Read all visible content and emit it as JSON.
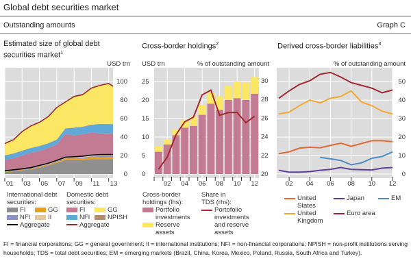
{
  "header": {
    "title": "Global debt securities market",
    "subtitle": "Outstanding amounts",
    "graph_label": "Graph C"
  },
  "colors": {
    "plot_bg": "#dcdcdc",
    "grid": "#ffffff",
    "intl_fi": "#8f8f8f",
    "intl_gg": "#e9a020",
    "intl_nfi": "#8a93c9",
    "intl_ii": "#e6c79a",
    "dom_fi": "#c27b93",
    "dom_gg": "#fbe763",
    "dom_nfi": "#5fa9d9",
    "dom_npish": "#b38b6d",
    "intl_agg": "#000000",
    "dom_agg": "#9b2a2e",
    "portfolio": "#c27b93",
    "reserve": "#fbe763",
    "share": "#a3282e",
    "us": "#e2692e",
    "japan": "#5e3f98",
    "em": "#4d8bc3",
    "uk": "#f2a833",
    "euro": "#a3282e"
  },
  "chart_data": [
    {
      "type": "area",
      "title": "Estimated size of global debt securities market",
      "title_footnote": "1",
      "ylabel": "USD trn",
      "ylim": [
        0,
        115
      ],
      "yticks": [
        0,
        20,
        40,
        60,
        80,
        100
      ],
      "xticks": [
        {
          "value": 2001,
          "label": "01"
        },
        {
          "value": 2003,
          "label": "03"
        },
        {
          "value": 2005,
          "label": "05"
        },
        {
          "value": 2007,
          "label": "07"
        },
        {
          "value": 2009,
          "label": "09"
        },
        {
          "value": 2011,
          "label": "11"
        },
        {
          "value": 2013,
          "label": "13"
        }
      ],
      "x": [
        2001,
        2002,
        2003,
        2004,
        2005,
        2006,
        2007,
        2008,
        2009,
        2010,
        2011,
        2012,
        2013,
        2013.5
      ],
      "stacked_series": [
        {
          "key": "intl_fi",
          "name": "FI",
          "group": "International debt securities",
          "values": [
            2,
            3,
            4,
            5,
            7,
            9,
            12,
            15,
            15,
            15,
            16,
            16,
            16,
            16
          ]
        },
        {
          "key": "intl_gg",
          "name": "GG",
          "group": "International debt securities",
          "values": [
            0.5,
            0.5,
            0.6,
            0.7,
            0.8,
            0.9,
            1,
            1.2,
            1.5,
            1.8,
            2,
            2.2,
            2.3,
            2.3
          ]
        },
        {
          "key": "intl_nfi",
          "name": "NFI",
          "group": "International debt securities",
          "values": [
            0.5,
            0.5,
            0.5,
            0.6,
            0.6,
            0.6,
            0.6,
            0.7,
            0.8,
            0.9,
            1,
            1.1,
            1.1,
            1.1
          ]
        },
        {
          "key": "intl_ii",
          "name": "II",
          "group": "International debt securities",
          "values": [
            0.5,
            0.5,
            0.5,
            0.6,
            0.9,
            1.1,
            1.1,
            1.3,
            1.4,
            1.6,
            1.5,
            1.7,
            1.7,
            1.6
          ]
        },
        {
          "key": "dom_fi",
          "name": "FI",
          "group": "Domestic debt securities",
          "values": [
            11.5,
            12.5,
            14.4,
            16,
            15.7,
            16.4,
            17.3,
            24.8,
            23.3,
            23.7,
            24.5,
            23,
            22.9,
            23
          ]
        },
        {
          "key": "dom_nfi",
          "name": "NFI",
          "group": "Domestic debt securities",
          "values": [
            5,
            5,
            5,
            5,
            5,
            5,
            5,
            6,
            8,
            8,
            8,
            10,
            10,
            10
          ]
        },
        {
          "key": "dom_npish",
          "name": "NPISH",
          "group": "Domestic debt securities",
          "values": [
            0.3,
            0.3,
            0.3,
            0.3,
            0.3,
            0.3,
            0.3,
            0.3,
            0.3,
            0.3,
            0.3,
            0.3,
            0.3,
            0.3
          ]
        },
        {
          "key": "dom_gg",
          "name": "GG",
          "group": "Domestic debt securities",
          "values": [
            12.7,
            14.7,
            20.7,
            23.7,
            25.7,
            28.7,
            34.7,
            28.7,
            33.7,
            34.7,
            39.7,
            41.7,
            43.7,
            40.7
          ]
        }
      ],
      "lines": [
        {
          "key": "intl_agg",
          "name": "Aggregate",
          "group": "International debt securities",
          "values": [
            3.5,
            4.5,
            5.6,
            6.9,
            9.3,
            11.6,
            14.7,
            18.2,
            18.7,
            19.3,
            20.5,
            21,
            21.1,
            21
          ]
        },
        {
          "key": "dom_agg",
          "name": "Aggregate",
          "group": "Domestic debt securities",
          "values": [
            33,
            37,
            46,
            52,
            56,
            62,
            72,
            78,
            84,
            86,
            93,
            96,
            98,
            95
          ]
        }
      ]
    },
    {
      "type": "bar",
      "title": "Cross-border holdings",
      "title_footnote": "2",
      "ylabel_left": "USD trn",
      "ylabel_right": "% of outstanding amount",
      "ylim_left": [
        0,
        28.7
      ],
      "ylim_right": [
        20,
        31.5
      ],
      "yticks_left": [
        0,
        5,
        10,
        15,
        20,
        25
      ],
      "yticks_right": [
        20,
        22,
        24,
        26,
        28,
        30
      ],
      "categories": [
        2001,
        2002,
        2003,
        2004,
        2005,
        2006,
        2007,
        2008,
        2009,
        2010,
        2011,
        2012
      ],
      "xticks": [
        {
          "value": 2002,
          "label": "02"
        },
        {
          "value": 2004,
          "label": "04"
        },
        {
          "value": 2006,
          "label": "06"
        },
        {
          "value": 2008,
          "label": "08"
        },
        {
          "value": 2010,
          "label": "10"
        },
        {
          "value": 2012,
          "label": "12"
        }
      ],
      "series": [
        {
          "key": "portfolio",
          "name": "Portfolio investments",
          "values": [
            6,
            8,
            10.5,
            12.5,
            13,
            16,
            19,
            17.3,
            20,
            20.5,
            20,
            21.7
          ]
        },
        {
          "key": "reserve",
          "name": "Reserve assets",
          "values": [
            1.5,
            1.3,
            1.5,
            2,
            2.5,
            2.7,
            3,
            3.7,
            3.8,
            4.5,
            4.7,
            4.5
          ]
        }
      ],
      "line": {
        "key": "share",
        "name": "Portofolio investments and reserve assets",
        "axis": "right",
        "values": [
          20.5,
          21.8,
          24.2,
          25.6,
          26.1,
          28.5,
          29,
          26.3,
          26.6,
          26.6,
          25.5,
          26.2
        ]
      }
    },
    {
      "type": "line",
      "title": "Derived cross-border liabilities",
      "title_footnote": "3",
      "ylabel": "% of outstanding amount",
      "ylim": [
        0,
        57.5
      ],
      "yticks": [
        0,
        10,
        20,
        30,
        40,
        50
      ],
      "xlim": [
        2001,
        2012.2
      ],
      "xticks": [
        {
          "value": 2002,
          "label": "02"
        },
        {
          "value": 2004,
          "label": "04"
        },
        {
          "value": 2006,
          "label": "06"
        },
        {
          "value": 2008,
          "label": "08"
        },
        {
          "value": 2010,
          "label": "10"
        },
        {
          "value": 2012,
          "label": "12"
        }
      ],
      "series": [
        {
          "key": "euro",
          "name": "Euro area",
          "x": [
            2001,
            2002,
            2003,
            2004,
            2005,
            2006,
            2007,
            2008,
            2009,
            2010,
            2011,
            2012
          ],
          "values": [
            41,
            45,
            48.5,
            50.5,
            54,
            55,
            52.5,
            49.5,
            48,
            46.5,
            44,
            45.5
          ]
        },
        {
          "key": "uk",
          "name": "United Kingdom",
          "x": [
            2001,
            2002,
            2003,
            2004,
            2005,
            2006,
            2007,
            2008,
            2009,
            2010,
            2011,
            2012
          ],
          "values": [
            32.5,
            33.5,
            37,
            40,
            38.5,
            41,
            42,
            45,
            39,
            37,
            34,
            32.5
          ]
        },
        {
          "key": "us",
          "name": "United States",
          "x": [
            2001,
            2002,
            2003,
            2004,
            2005,
            2006,
            2007,
            2008,
            2009,
            2010,
            2011,
            2012
          ],
          "values": [
            11,
            12,
            14,
            14.5,
            14.2,
            15.5,
            16.7,
            15,
            16.5,
            18,
            18,
            17.5
          ]
        },
        {
          "key": "em",
          "name": "EM",
          "x": [
            2005,
            2006,
            2007,
            2008,
            2009,
            2010,
            2011,
            2012
          ],
          "values": [
            9,
            8.2,
            7.3,
            5,
            6,
            8.5,
            9.5,
            12
          ]
        },
        {
          "key": "japan",
          "name": "Japan",
          "x": [
            2001,
            2002,
            2003,
            2004,
            2005,
            2006,
            2007,
            2008,
            2009,
            2010,
            2011,
            2012
          ],
          "values": [
            2,
            1,
            1,
            1.3,
            2,
            2.5,
            3.5,
            2.5,
            2.3,
            2.2,
            3.2,
            3.5
          ]
        }
      ]
    }
  ],
  "legends": {
    "p1": {
      "intl_heading": "International debt securities:",
      "dom_heading": "Domestic debt securities:",
      "intl_fi": "FI",
      "intl_gg": "GG",
      "intl_nfi": "NFI",
      "intl_ii": "II",
      "intl_agg": "Aggregate",
      "dom_fi": "FI",
      "dom_gg": "GG",
      "dom_nfi": "NFI",
      "dom_npish": "NPISH",
      "dom_agg": "Aggregate"
    },
    "p2": {
      "bars_heading": "Cross-border holdings (lhs):",
      "line_heading": "Share in TDS (rhs):",
      "portfolio": "Portfolio investments",
      "reserve": "Reserve assets",
      "share": "Portofolio investments and reserve assets"
    },
    "p3": {
      "us": "United States",
      "japan": "Japan",
      "em": "EM",
      "uk": "United Kingdom",
      "euro": "Euro area"
    }
  },
  "footnote": "FI = financial corporations; GG = general government; II = international institutions; NFI = non-financial corporations; NPISH = non-profit institutions serving households; TDS = total debt securities; EM = emerging markets (Brazil, China, Korea, Mexico, Poland, Russia, South Africa and Turkey)."
}
